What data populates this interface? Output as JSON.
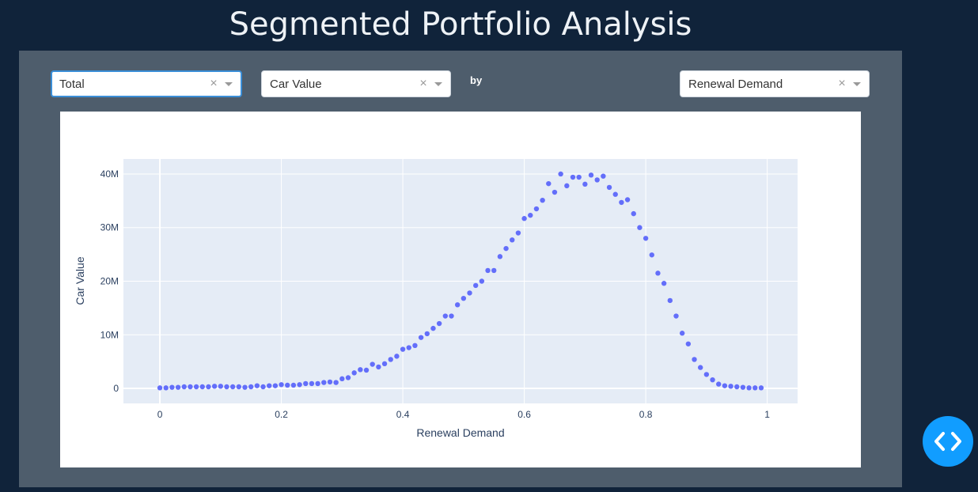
{
  "page": {
    "title": "Segmented Portfolio Analysis"
  },
  "controls": {
    "segment": {
      "value": "Total",
      "clear": "×"
    },
    "y_metric": {
      "value": "Car Value",
      "clear": "×"
    },
    "by_label": "by",
    "x_metric": {
      "value": "Renewal Demand",
      "clear": "×"
    }
  },
  "colors": {
    "marker": "#636efa",
    "plot_bg": "#e5ecf6",
    "panel": "#4e5d6c",
    "page_bg": "#10233a",
    "fab": "#119dff"
  },
  "fab_icon": "code-brackets-icon",
  "chart_data": {
    "type": "scatter",
    "xlabel": "Renewal Demand",
    "ylabel": "Car Value",
    "xlim": [
      -0.06,
      1.05
    ],
    "ylim": [
      -2800000,
      42800000
    ],
    "xticks": [
      0,
      0.2,
      0.4,
      0.6,
      0.8,
      1
    ],
    "xtick_labels": [
      "0",
      "0.2",
      "0.4",
      "0.6",
      "0.8",
      "1"
    ],
    "yticks": [
      0,
      10000000,
      20000000,
      30000000,
      40000000
    ],
    "ytick_labels": [
      "0",
      "10M",
      "20M",
      "30M",
      "40M"
    ],
    "grid": true,
    "series": [
      {
        "x": [
          0,
          0.01,
          0.02,
          0.03,
          0.04,
          0.05,
          0.06,
          0.07,
          0.08,
          0.09,
          0.1,
          0.11,
          0.12,
          0.13,
          0.14,
          0.15,
          0.16,
          0.17,
          0.18,
          0.19,
          0.2,
          0.21,
          0.22,
          0.23,
          0.24,
          0.25,
          0.26,
          0.27,
          0.28,
          0.29,
          0.3,
          0.31,
          0.32,
          0.33,
          0.34,
          0.35,
          0.36,
          0.37,
          0.38,
          0.39,
          0.4,
          0.41,
          0.42,
          0.43,
          0.44,
          0.45,
          0.46,
          0.47,
          0.48,
          0.49,
          0.5,
          0.51,
          0.52,
          0.53,
          0.54,
          0.55,
          0.56,
          0.57,
          0.58,
          0.59,
          0.6,
          0.61,
          0.62,
          0.63,
          0.64,
          0.65,
          0.66,
          0.67,
          0.68,
          0.69,
          0.7,
          0.71,
          0.72,
          0.73,
          0.74,
          0.75,
          0.76,
          0.77,
          0.78,
          0.79,
          0.8,
          0.81,
          0.82,
          0.83,
          0.84,
          0.85,
          0.86,
          0.87,
          0.88,
          0.89,
          0.9,
          0.91,
          0.92,
          0.93,
          0.94,
          0.95,
          0.96,
          0.97,
          0.98,
          0.99
        ],
        "y": [
          100000,
          100000,
          200000,
          200000,
          300000,
          300000,
          300000,
          300000,
          300000,
          400000,
          400000,
          300000,
          300000,
          300000,
          200000,
          300000,
          500000,
          300000,
          500000,
          500000,
          700000,
          600000,
          600000,
          700000,
          900000,
          900000,
          900000,
          1100000,
          1200000,
          1100000,
          1800000,
          2000000,
          2900000,
          3500000,
          3400000,
          4500000,
          4000000,
          4600000,
          5400000,
          6000000,
          7300000,
          7600000,
          8000000,
          9500000,
          10200000,
          11200000,
          12100000,
          13500000,
          13500000,
          15600000,
          16800000,
          17800000,
          19200000,
          20000000,
          22000000,
          22000000,
          24600000,
          26100000,
          27700000,
          29000000,
          31700000,
          32300000,
          33500000,
          35100000,
          38200000,
          36600000,
          40000000,
          37800000,
          39400000,
          39400000,
          38100000,
          39800000,
          38900000,
          39600000,
          37500000,
          36200000,
          34700000,
          35200000,
          32600000,
          30000000,
          28000000,
          24900000,
          21500000,
          19600000,
          16400000,
          13500000,
          10300000,
          8300000,
          5400000,
          3900000,
          2600000,
          1600000,
          800000,
          500000,
          400000,
          300000,
          200000,
          100000,
          100000,
          100000
        ]
      }
    ]
  }
}
